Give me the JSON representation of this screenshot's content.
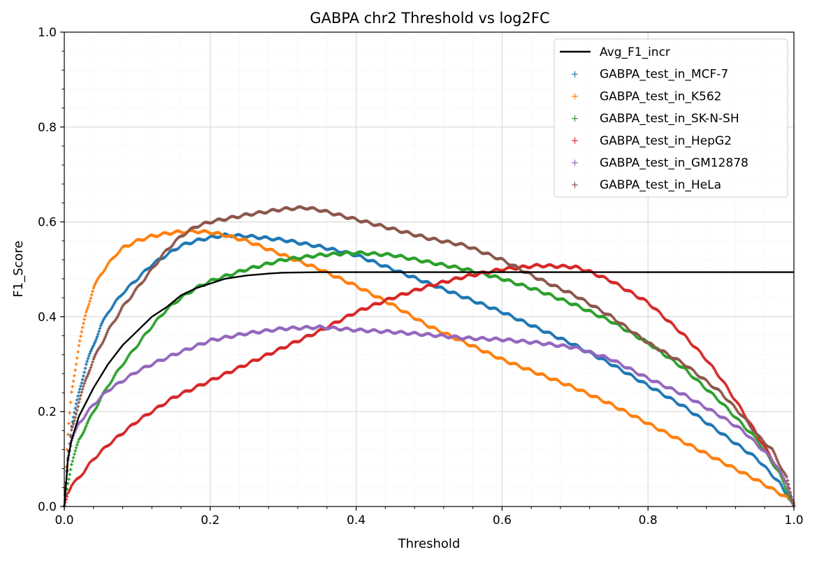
{
  "chart_data": {
    "type": "line",
    "title": "GABPA chr2 Threshold vs log2FC",
    "xlabel": "Threshold",
    "ylabel": "F1_Score",
    "xlim": [
      0,
      1
    ],
    "ylim": [
      0,
      1
    ],
    "xticks": [
      "0.0",
      "0.2",
      "0.4",
      "0.6",
      "0.8",
      "1.0"
    ],
    "yticks": [
      "0.0",
      "0.2",
      "0.4",
      "0.6",
      "0.8",
      "1.0"
    ],
    "grid": true,
    "legend_position": "top-right",
    "series": [
      {
        "name": "Avg_F1_incr",
        "style": "line",
        "color": "#000000",
        "points": [
          [
            0,
            0
          ],
          [
            0.005,
            0.1
          ],
          [
            0.01,
            0.14
          ],
          [
            0.02,
            0.19
          ],
          [
            0.04,
            0.25
          ],
          [
            0.06,
            0.3
          ],
          [
            0.08,
            0.34
          ],
          [
            0.1,
            0.37
          ],
          [
            0.12,
            0.4
          ],
          [
            0.14,
            0.42
          ],
          [
            0.16,
            0.445
          ],
          [
            0.18,
            0.46
          ],
          [
            0.2,
            0.47
          ],
          [
            0.22,
            0.48
          ],
          [
            0.25,
            0.487
          ],
          [
            0.28,
            0.491
          ],
          [
            0.3,
            0.493
          ],
          [
            0.35,
            0.494
          ],
          [
            0.4,
            0.494
          ],
          [
            1.0,
            0.494
          ]
        ]
      },
      {
        "name": "GABPA_test_in_MCF-7",
        "style": "marker",
        "color": "#1f77b4",
        "points": [
          [
            0,
            0
          ],
          [
            0.005,
            0.1
          ],
          [
            0.01,
            0.17
          ],
          [
            0.02,
            0.24
          ],
          [
            0.03,
            0.3
          ],
          [
            0.04,
            0.34
          ],
          [
            0.05,
            0.38
          ],
          [
            0.06,
            0.41
          ],
          [
            0.08,
            0.45
          ],
          [
            0.1,
            0.48
          ],
          [
            0.12,
            0.51
          ],
          [
            0.14,
            0.53
          ],
          [
            0.16,
            0.55
          ],
          [
            0.18,
            0.56
          ],
          [
            0.2,
            0.567
          ],
          [
            0.22,
            0.572
          ],
          [
            0.25,
            0.57
          ],
          [
            0.3,
            0.562
          ],
          [
            0.35,
            0.548
          ],
          [
            0.4,
            0.53
          ],
          [
            0.45,
            0.5
          ],
          [
            0.5,
            0.47
          ],
          [
            0.55,
            0.44
          ],
          [
            0.6,
            0.41
          ],
          [
            0.65,
            0.375
          ],
          [
            0.7,
            0.34
          ],
          [
            0.75,
            0.3
          ],
          [
            0.8,
            0.255
          ],
          [
            0.85,
            0.21
          ],
          [
            0.9,
            0.155
          ],
          [
            0.95,
            0.1
          ],
          [
            0.98,
            0.05
          ],
          [
            1.0,
            0
          ]
        ]
      },
      {
        "name": "GABPA_test_in_K562",
        "style": "marker",
        "color": "#ff7f0e",
        "points": [
          [
            0,
            0
          ],
          [
            0.003,
            0.1
          ],
          [
            0.005,
            0.15
          ],
          [
            0.01,
            0.24
          ],
          [
            0.02,
            0.34
          ],
          [
            0.03,
            0.41
          ],
          [
            0.04,
            0.46
          ],
          [
            0.05,
            0.49
          ],
          [
            0.06,
            0.51
          ],
          [
            0.07,
            0.53
          ],
          [
            0.08,
            0.545
          ],
          [
            0.1,
            0.56
          ],
          [
            0.12,
            0.57
          ],
          [
            0.15,
            0.578
          ],
          [
            0.18,
            0.58
          ],
          [
            0.2,
            0.578
          ],
          [
            0.22,
            0.572
          ],
          [
            0.25,
            0.56
          ],
          [
            0.3,
            0.53
          ],
          [
            0.35,
            0.5
          ],
          [
            0.4,
            0.465
          ],
          [
            0.45,
            0.425
          ],
          [
            0.5,
            0.38
          ],
          [
            0.55,
            0.345
          ],
          [
            0.6,
            0.31
          ],
          [
            0.65,
            0.28
          ],
          [
            0.7,
            0.25
          ],
          [
            0.75,
            0.215
          ],
          [
            0.8,
            0.175
          ],
          [
            0.85,
            0.135
          ],
          [
            0.9,
            0.095
          ],
          [
            0.95,
            0.055
          ],
          [
            1.0,
            0.01
          ]
        ]
      },
      {
        "name": "GABPA_test_in_SK-N-SH",
        "style": "marker",
        "color": "#2ca02c",
        "points": [
          [
            0,
            0
          ],
          [
            0.005,
            0.05
          ],
          [
            0.01,
            0.09
          ],
          [
            0.02,
            0.14
          ],
          [
            0.04,
            0.2
          ],
          [
            0.06,
            0.255
          ],
          [
            0.08,
            0.3
          ],
          [
            0.1,
            0.34
          ],
          [
            0.12,
            0.38
          ],
          [
            0.14,
            0.415
          ],
          [
            0.16,
            0.44
          ],
          [
            0.18,
            0.46
          ],
          [
            0.2,
            0.475
          ],
          [
            0.25,
            0.5
          ],
          [
            0.3,
            0.52
          ],
          [
            0.35,
            0.53
          ],
          [
            0.4,
            0.535
          ],
          [
            0.45,
            0.53
          ],
          [
            0.5,
            0.515
          ],
          [
            0.55,
            0.5
          ],
          [
            0.6,
            0.48
          ],
          [
            0.65,
            0.455
          ],
          [
            0.7,
            0.425
          ],
          [
            0.75,
            0.39
          ],
          [
            0.8,
            0.345
          ],
          [
            0.85,
            0.29
          ],
          [
            0.9,
            0.22
          ],
          [
            0.95,
            0.14
          ],
          [
            0.98,
            0.07
          ],
          [
            1.0,
            0
          ]
        ]
      },
      {
        "name": "GABPA_test_in_HepG2",
        "style": "marker",
        "color": "#d62728",
        "points": [
          [
            0,
            0
          ],
          [
            0.005,
            0.03
          ],
          [
            0.01,
            0.045
          ],
          [
            0.02,
            0.06
          ],
          [
            0.04,
            0.1
          ],
          [
            0.06,
            0.13
          ],
          [
            0.08,
            0.155
          ],
          [
            0.1,
            0.18
          ],
          [
            0.12,
            0.2
          ],
          [
            0.15,
            0.23
          ],
          [
            0.2,
            0.265
          ],
          [
            0.25,
            0.3
          ],
          [
            0.3,
            0.335
          ],
          [
            0.35,
            0.37
          ],
          [
            0.4,
            0.41
          ],
          [
            0.45,
            0.44
          ],
          [
            0.5,
            0.465
          ],
          [
            0.55,
            0.485
          ],
          [
            0.6,
            0.5
          ],
          [
            0.65,
            0.508
          ],
          [
            0.7,
            0.505
          ],
          [
            0.72,
            0.495
          ],
          [
            0.75,
            0.475
          ],
          [
            0.8,
            0.43
          ],
          [
            0.85,
            0.36
          ],
          [
            0.88,
            0.31
          ],
          [
            0.9,
            0.27
          ],
          [
            0.93,
            0.2
          ],
          [
            0.95,
            0.15
          ],
          [
            0.97,
            0.1
          ],
          [
            0.99,
            0.05
          ],
          [
            1.0,
            0
          ]
        ]
      },
      {
        "name": "GABPA_test_in_GM12878",
        "style": "marker",
        "color": "#9467bd",
        "points": [
          [
            0,
            0
          ],
          [
            0.005,
            0.1
          ],
          [
            0.01,
            0.14
          ],
          [
            0.02,
            0.175
          ],
          [
            0.04,
            0.215
          ],
          [
            0.06,
            0.245
          ],
          [
            0.08,
            0.265
          ],
          [
            0.1,
            0.285
          ],
          [
            0.12,
            0.3
          ],
          [
            0.15,
            0.32
          ],
          [
            0.2,
            0.35
          ],
          [
            0.25,
            0.365
          ],
          [
            0.3,
            0.375
          ],
          [
            0.35,
            0.378
          ],
          [
            0.4,
            0.372
          ],
          [
            0.45,
            0.368
          ],
          [
            0.5,
            0.362
          ],
          [
            0.55,
            0.355
          ],
          [
            0.6,
            0.352
          ],
          [
            0.65,
            0.345
          ],
          [
            0.7,
            0.335
          ],
          [
            0.75,
            0.31
          ],
          [
            0.8,
            0.27
          ],
          [
            0.85,
            0.235
          ],
          [
            0.9,
            0.19
          ],
          [
            0.93,
            0.16
          ],
          [
            0.95,
            0.13
          ],
          [
            0.97,
            0.1
          ],
          [
            0.99,
            0.05
          ],
          [
            1.0,
            0
          ]
        ]
      },
      {
        "name": "GABPA_test_in_HeLa",
        "style": "marker",
        "color": "#8c564b",
        "points": [
          [
            0,
            0
          ],
          [
            0.005,
            0.1
          ],
          [
            0.01,
            0.16
          ],
          [
            0.02,
            0.22
          ],
          [
            0.03,
            0.27
          ],
          [
            0.04,
            0.31
          ],
          [
            0.05,
            0.34
          ],
          [
            0.06,
            0.37
          ],
          [
            0.08,
            0.42
          ],
          [
            0.1,
            0.46
          ],
          [
            0.12,
            0.5
          ],
          [
            0.14,
            0.54
          ],
          [
            0.16,
            0.57
          ],
          [
            0.18,
            0.59
          ],
          [
            0.2,
            0.6
          ],
          [
            0.25,
            0.615
          ],
          [
            0.3,
            0.627
          ],
          [
            0.33,
            0.63
          ],
          [
            0.35,
            0.625
          ],
          [
            0.4,
            0.605
          ],
          [
            0.45,
            0.585
          ],
          [
            0.5,
            0.565
          ],
          [
            0.55,
            0.55
          ],
          [
            0.6,
            0.52
          ],
          [
            0.65,
            0.48
          ],
          [
            0.7,
            0.445
          ],
          [
            0.75,
            0.4
          ],
          [
            0.8,
            0.345
          ],
          [
            0.85,
            0.3
          ],
          [
            0.9,
            0.24
          ],
          [
            0.93,
            0.19
          ],
          [
            0.95,
            0.15
          ],
          [
            0.97,
            0.12
          ],
          [
            0.99,
            0.06
          ],
          [
            1.0,
            0
          ]
        ]
      }
    ]
  }
}
